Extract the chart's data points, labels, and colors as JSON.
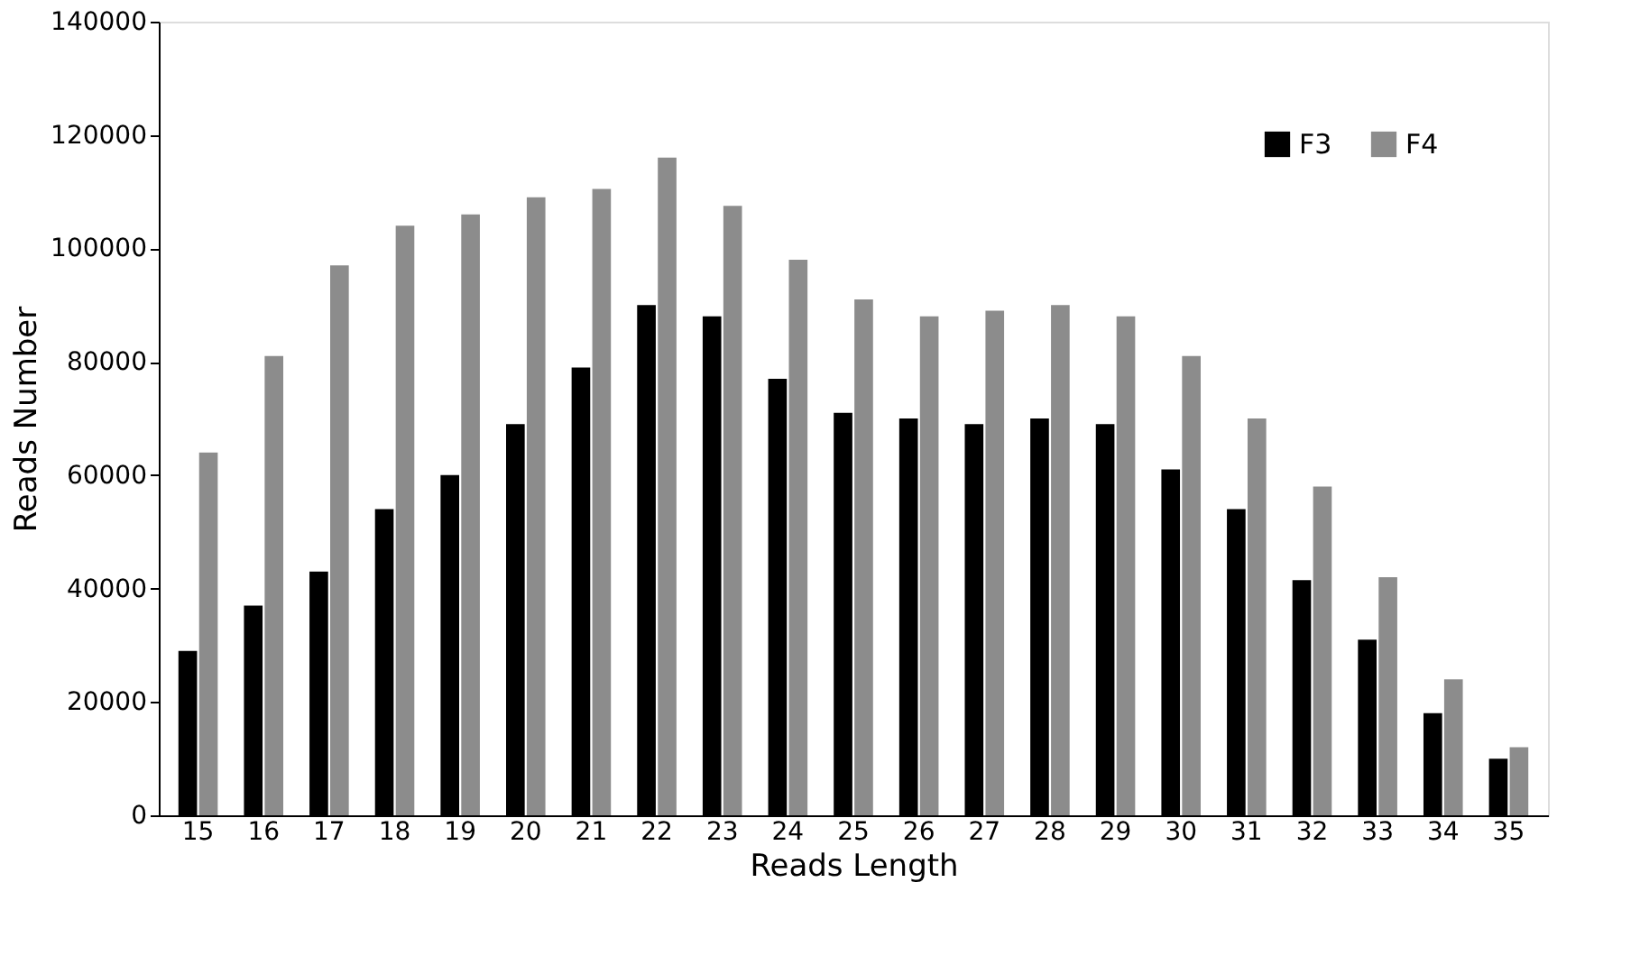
{
  "chart_data": {
    "type": "bar",
    "xlabel": "Reads Length",
    "ylabel": "Reads Number",
    "categories": [
      "15",
      "16",
      "17",
      "18",
      "19",
      "20",
      "21",
      "22",
      "23",
      "24",
      "25",
      "26",
      "27",
      "28",
      "29",
      "30",
      "31",
      "32",
      "33",
      "34",
      "35"
    ],
    "series": [
      {
        "name": "F3",
        "color": "#000000",
        "values": [
          29000,
          37000,
          43000,
          54000,
          60000,
          69000,
          79000,
          90000,
          88000,
          77000,
          71000,
          70000,
          69000,
          70000,
          69000,
          61000,
          54000,
          41500,
          31000,
          18000,
          10000
        ]
      },
      {
        "name": "F4",
        "color": "#8c8c8c",
        "values": [
          64000,
          81000,
          97000,
          104000,
          106000,
          109000,
          110500,
          116000,
          107500,
          98000,
          91000,
          88000,
          89000,
          90000,
          88000,
          81000,
          70000,
          58000,
          42000,
          24000,
          12000
        ]
      }
    ],
    "ylim": [
      0,
      140000
    ],
    "yticks": [
      0,
      20000,
      40000,
      60000,
      80000,
      100000,
      120000,
      140000
    ],
    "grid": false,
    "legend": "top right"
  }
}
